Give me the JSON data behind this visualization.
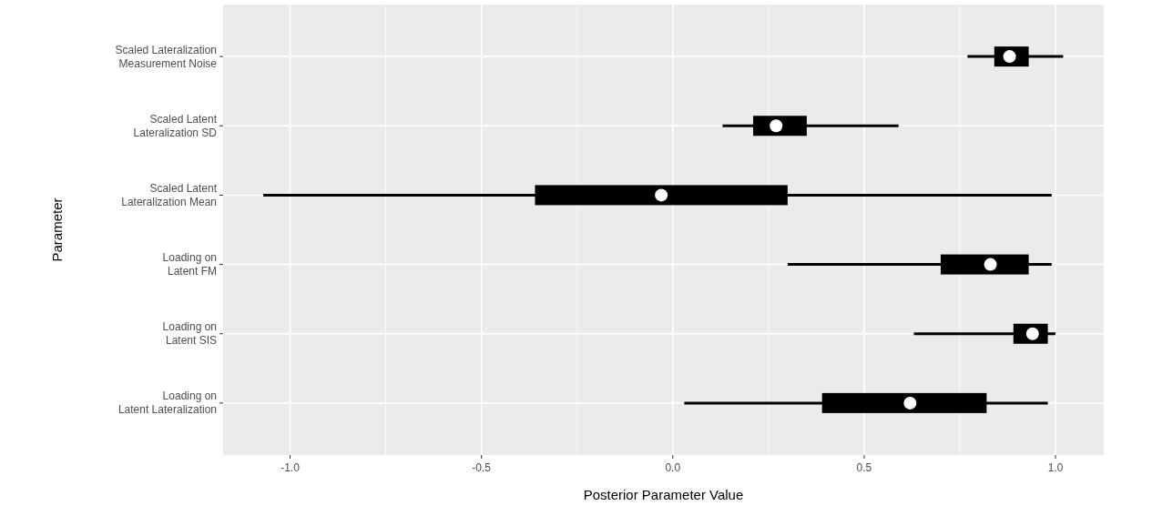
{
  "chart_data": {
    "type": "box",
    "orientation": "horizontal",
    "xlabel": "Posterior Parameter Value",
    "ylabel": "Parameter",
    "categories": [
      "Scaled Lateralization\nMeasurement Noise",
      "Scaled Latent\nLateralization SD",
      "Scaled Latent\nLateralization Mean",
      "Loading on\nLatent FM",
      "Loading on\nLatent SIS",
      "Loading on\nLatent Lateralization"
    ],
    "boxes": [
      {
        "low": 0.77,
        "q1": 0.84,
        "median": 0.88,
        "q3": 0.93,
        "high": 1.02
      },
      {
        "low": 0.13,
        "q1": 0.21,
        "median": 0.27,
        "q3": 0.35,
        "high": 0.59
      },
      {
        "low": -1.07,
        "q1": -0.36,
        "median": -0.03,
        "q3": 0.3,
        "high": 0.99
      },
      {
        "low": 0.3,
        "q1": 0.7,
        "median": 0.83,
        "q3": 0.93,
        "high": 0.99
      },
      {
        "low": 0.63,
        "q1": 0.89,
        "median": 0.94,
        "q3": 0.98,
        "high": 1.0
      },
      {
        "low": 0.03,
        "q1": 0.39,
        "median": 0.62,
        "q3": 0.82,
        "high": 0.98
      }
    ],
    "color": "#000000",
    "xlim": [
      -1.175,
      1.126
    ],
    "xticks": [
      {
        "value": -1,
        "label": "-1.0"
      },
      {
        "value": -0.5,
        "label": "-0.5"
      },
      {
        "value": 0,
        "label": "0.0"
      },
      {
        "value": 0.5,
        "label": "0.5"
      },
      {
        "value": 1,
        "label": "1.0"
      }
    ],
    "grid": true
  }
}
